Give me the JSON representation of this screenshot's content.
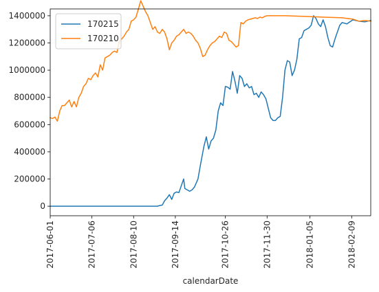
{
  "chart_data": {
    "type": "line",
    "xlabel": "calendarDate",
    "ylabel": "",
    "title": "",
    "xlim": [
      "2017-06-01",
      "2018-02-25"
    ],
    "ylim": [
      -70000,
      1450000
    ],
    "x_ticks": [
      "2017-06-01",
      "2017-07-06",
      "2017-08-10",
      "2017-09-14",
      "2017-10-26",
      "2017-11-30",
      "2018-01-05",
      "2018-02-09"
    ],
    "y_ticks": [
      0,
      200000,
      400000,
      600000,
      800000,
      1000000,
      1200000,
      1400000
    ],
    "y_tick_labels": [
      "0",
      "200000",
      "400000",
      "600000",
      "800000",
      "1000000",
      "1200000",
      "1400000"
    ],
    "grid": false,
    "legend_position": "top-left",
    "series": [
      {
        "name": "170215",
        "color": "#1f77b4",
        "points": [
          [
            "2017-06-01",
            0
          ],
          [
            "2017-07-01",
            0
          ],
          [
            "2017-08-01",
            0
          ],
          [
            "2017-08-30",
            0
          ],
          [
            "2017-09-01",
            5000
          ],
          [
            "2017-09-03",
            8000
          ],
          [
            "2017-09-05",
            40000
          ],
          [
            "2017-09-07",
            60000
          ],
          [
            "2017-09-09",
            85000
          ],
          [
            "2017-09-11",
            50000
          ],
          [
            "2017-09-13",
            95000
          ],
          [
            "2017-09-15",
            105000
          ],
          [
            "2017-09-17",
            100000
          ],
          [
            "2017-09-19",
            150000
          ],
          [
            "2017-09-21",
            200000
          ],
          [
            "2017-09-22",
            130000
          ],
          [
            "2017-09-24",
            120000
          ],
          [
            "2017-09-26",
            110000
          ],
          [
            "2017-09-28",
            120000
          ],
          [
            "2017-09-30",
            140000
          ],
          [
            "2017-10-03",
            200000
          ],
          [
            "2017-10-05",
            300000
          ],
          [
            "2017-10-08",
            440000
          ],
          [
            "2017-10-10",
            510000
          ],
          [
            "2017-10-12",
            420000
          ],
          [
            "2017-10-14",
            480000
          ],
          [
            "2017-10-16",
            500000
          ],
          [
            "2017-10-18",
            560000
          ],
          [
            "2017-10-20",
            700000
          ],
          [
            "2017-10-22",
            760000
          ],
          [
            "2017-10-24",
            740000
          ],
          [
            "2017-10-26",
            880000
          ],
          [
            "2017-10-28",
            875000
          ],
          [
            "2017-10-30",
            860000
          ],
          [
            "2017-11-01",
            990000
          ],
          [
            "2017-11-03",
            920000
          ],
          [
            "2017-11-05",
            830000
          ],
          [
            "2017-11-07",
            960000
          ],
          [
            "2017-11-09",
            940000
          ],
          [
            "2017-11-11",
            880000
          ],
          [
            "2017-11-13",
            900000
          ],
          [
            "2017-11-15",
            870000
          ],
          [
            "2017-11-17",
            880000
          ],
          [
            "2017-11-19",
            820000
          ],
          [
            "2017-11-21",
            830000
          ],
          [
            "2017-11-23",
            800000
          ],
          [
            "2017-11-25",
            840000
          ],
          [
            "2017-11-27",
            820000
          ],
          [
            "2017-11-29",
            790000
          ],
          [
            "2017-12-01",
            720000
          ],
          [
            "2017-12-03",
            650000
          ],
          [
            "2017-12-05",
            630000
          ],
          [
            "2017-12-07",
            630000
          ],
          [
            "2017-12-09",
            650000
          ],
          [
            "2017-12-11",
            660000
          ],
          [
            "2017-12-13",
            800000
          ],
          [
            "2017-12-15",
            1000000
          ],
          [
            "2017-12-17",
            1070000
          ],
          [
            "2017-12-19",
            1060000
          ],
          [
            "2017-12-21",
            960000
          ],
          [
            "2017-12-23",
            1000000
          ],
          [
            "2017-12-25",
            1080000
          ],
          [
            "2017-12-27",
            1230000
          ],
          [
            "2017-12-29",
            1240000
          ],
          [
            "2017-12-31",
            1290000
          ],
          [
            "2018-01-02",
            1300000
          ],
          [
            "2018-01-04",
            1310000
          ],
          [
            "2018-01-06",
            1330000
          ],
          [
            "2018-01-08",
            1400000
          ],
          [
            "2018-01-10",
            1380000
          ],
          [
            "2018-01-12",
            1340000
          ],
          [
            "2018-01-14",
            1320000
          ],
          [
            "2018-01-16",
            1370000
          ],
          [
            "2018-01-18",
            1320000
          ],
          [
            "2018-01-20",
            1240000
          ],
          [
            "2018-01-22",
            1180000
          ],
          [
            "2018-01-24",
            1170000
          ],
          [
            "2018-01-26",
            1230000
          ],
          [
            "2018-01-28",
            1280000
          ],
          [
            "2018-01-30",
            1330000
          ],
          [
            "2018-02-01",
            1350000
          ],
          [
            "2018-02-05",
            1340000
          ],
          [
            "2018-02-10",
            1370000
          ],
          [
            "2018-02-15",
            1360000
          ],
          [
            "2018-02-20",
            1355000
          ],
          [
            "2018-02-25",
            1365000
          ]
        ]
      },
      {
        "name": "170210",
        "color": "#ff7f0e",
        "points": [
          [
            "2017-06-01",
            650000
          ],
          [
            "2017-06-03",
            645000
          ],
          [
            "2017-06-05",
            655000
          ],
          [
            "2017-06-07",
            625000
          ],
          [
            "2017-06-09",
            700000
          ],
          [
            "2017-06-11",
            740000
          ],
          [
            "2017-06-13",
            740000
          ],
          [
            "2017-06-15",
            760000
          ],
          [
            "2017-06-17",
            780000
          ],
          [
            "2017-06-19",
            730000
          ],
          [
            "2017-06-21",
            770000
          ],
          [
            "2017-06-23",
            730000
          ],
          [
            "2017-06-25",
            800000
          ],
          [
            "2017-06-27",
            830000
          ],
          [
            "2017-06-29",
            880000
          ],
          [
            "2017-07-01",
            900000
          ],
          [
            "2017-07-03",
            940000
          ],
          [
            "2017-07-05",
            930000
          ],
          [
            "2017-07-07",
            960000
          ],
          [
            "2017-07-09",
            980000
          ],
          [
            "2017-07-11",
            950000
          ],
          [
            "2017-07-13",
            1040000
          ],
          [
            "2017-07-15",
            1000000
          ],
          [
            "2017-07-17",
            1090000
          ],
          [
            "2017-07-19",
            1100000
          ],
          [
            "2017-07-21",
            1110000
          ],
          [
            "2017-07-23",
            1130000
          ],
          [
            "2017-07-25",
            1140000
          ],
          [
            "2017-07-27",
            1130000
          ],
          [
            "2017-07-29",
            1210000
          ],
          [
            "2017-07-31",
            1230000
          ],
          [
            "2017-08-02",
            1250000
          ],
          [
            "2017-08-04",
            1280000
          ],
          [
            "2017-08-06",
            1300000
          ],
          [
            "2017-08-08",
            1360000
          ],
          [
            "2017-08-10",
            1370000
          ],
          [
            "2017-08-12",
            1390000
          ],
          [
            "2017-08-14",
            1450000
          ],
          [
            "2017-08-16",
            1510000
          ],
          [
            "2017-08-18",
            1470000
          ],
          [
            "2017-08-20",
            1430000
          ],
          [
            "2017-08-22",
            1400000
          ],
          [
            "2017-08-24",
            1350000
          ],
          [
            "2017-08-26",
            1300000
          ],
          [
            "2017-08-28",
            1320000
          ],
          [
            "2017-08-30",
            1280000
          ],
          [
            "2017-09-01",
            1270000
          ],
          [
            "2017-09-03",
            1300000
          ],
          [
            "2017-09-05",
            1280000
          ],
          [
            "2017-09-07",
            1230000
          ],
          [
            "2017-09-09",
            1150000
          ],
          [
            "2017-09-11",
            1200000
          ],
          [
            "2017-09-13",
            1220000
          ],
          [
            "2017-09-15",
            1250000
          ],
          [
            "2017-09-17",
            1260000
          ],
          [
            "2017-09-19",
            1280000
          ],
          [
            "2017-09-21",
            1300000
          ],
          [
            "2017-09-23",
            1270000
          ],
          [
            "2017-09-25",
            1280000
          ],
          [
            "2017-09-27",
            1270000
          ],
          [
            "2017-09-29",
            1250000
          ],
          [
            "2017-10-01",
            1220000
          ],
          [
            "2017-10-03",
            1200000
          ],
          [
            "2017-10-05",
            1160000
          ],
          [
            "2017-10-07",
            1100000
          ],
          [
            "2017-10-09",
            1110000
          ],
          [
            "2017-10-11",
            1150000
          ],
          [
            "2017-10-13",
            1180000
          ],
          [
            "2017-10-15",
            1200000
          ],
          [
            "2017-10-17",
            1210000
          ],
          [
            "2017-10-19",
            1230000
          ],
          [
            "2017-10-21",
            1250000
          ],
          [
            "2017-10-23",
            1240000
          ],
          [
            "2017-10-25",
            1280000
          ],
          [
            "2017-10-27",
            1270000
          ],
          [
            "2017-10-29",
            1220000
          ],
          [
            "2017-10-31",
            1210000
          ],
          [
            "2017-11-02",
            1190000
          ],
          [
            "2017-11-04",
            1170000
          ],
          [
            "2017-11-06",
            1180000
          ],
          [
            "2017-11-08",
            1350000
          ],
          [
            "2017-11-10",
            1340000
          ],
          [
            "2017-11-12",
            1360000
          ],
          [
            "2017-11-14",
            1370000
          ],
          [
            "2017-11-16",
            1375000
          ],
          [
            "2017-11-18",
            1380000
          ],
          [
            "2017-11-20",
            1385000
          ],
          [
            "2017-11-22",
            1380000
          ],
          [
            "2017-11-24",
            1390000
          ],
          [
            "2017-11-26",
            1385000
          ],
          [
            "2017-11-28",
            1395000
          ],
          [
            "2017-11-30",
            1400000
          ],
          [
            "2017-12-15",
            1400000
          ],
          [
            "2018-01-01",
            1395000
          ],
          [
            "2018-01-15",
            1390000
          ],
          [
            "2018-02-01",
            1385000
          ],
          [
            "2018-02-10",
            1375000
          ],
          [
            "2018-02-15",
            1360000
          ],
          [
            "2018-02-20",
            1365000
          ],
          [
            "2018-02-25",
            1360000
          ]
        ]
      }
    ]
  }
}
